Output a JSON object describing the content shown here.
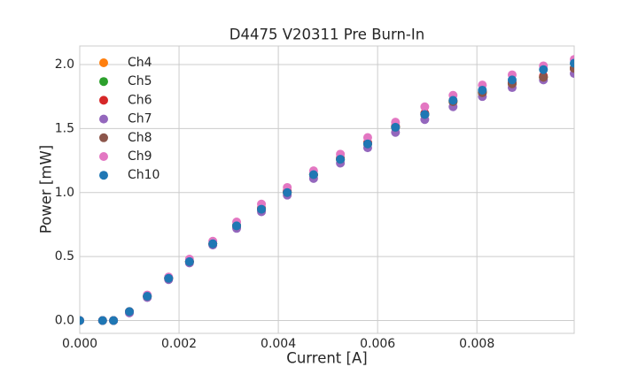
{
  "chart_data": {
    "type": "scatter",
    "title": "D4475 V20311 Pre Burn-In",
    "x_label": "Current [A]",
    "y_label": "Power [mW]",
    "x": [
      0,
      0.00046,
      0.00068,
      0.001,
      0.00136,
      0.00179,
      0.00221,
      0.00268,
      0.00316,
      0.00366,
      0.00418,
      0.00471,
      0.00525,
      0.0058,
      0.00636,
      0.00695,
      0.00752,
      0.00811,
      0.00871,
      0.00934,
      0.00996
    ],
    "series": [
      {
        "name": "Ch4",
        "color": "#ff7f0e",
        "values": [
          0,
          0,
          0,
          0.07,
          0.19,
          0.33,
          0.46,
          0.6,
          0.74,
          0.87,
          1.0,
          1.14,
          1.26,
          1.38,
          1.51,
          1.61,
          1.71,
          1.78,
          1.85,
          1.9,
          1.97
        ]
      },
      {
        "name": "Ch5",
        "color": "#2ca02c",
        "values": [
          0,
          0,
          0,
          0.07,
          0.19,
          0.33,
          0.46,
          0.6,
          0.74,
          0.87,
          1.0,
          1.14,
          1.26,
          1.38,
          1.51,
          1.61,
          1.71,
          1.78,
          1.85,
          1.9,
          1.97
        ]
      },
      {
        "name": "Ch6",
        "color": "#d62728",
        "values": [
          0,
          0,
          0,
          0.07,
          0.19,
          0.33,
          0.46,
          0.6,
          0.74,
          0.88,
          1.01,
          1.14,
          1.27,
          1.39,
          1.52,
          1.62,
          1.72,
          1.79,
          1.86,
          1.91,
          1.97
        ]
      },
      {
        "name": "Ch7",
        "color": "#9467bd",
        "values": [
          0,
          0,
          0,
          0.06,
          0.18,
          0.32,
          0.45,
          0.59,
          0.72,
          0.85,
          0.98,
          1.11,
          1.23,
          1.35,
          1.47,
          1.57,
          1.67,
          1.75,
          1.82,
          1.88,
          1.93
        ]
      },
      {
        "name": "Ch8",
        "color": "#8c564b",
        "values": [
          0,
          0,
          0,
          0.07,
          0.19,
          0.33,
          0.46,
          0.6,
          0.74,
          0.87,
          1.0,
          1.14,
          1.26,
          1.38,
          1.51,
          1.61,
          1.71,
          1.78,
          1.85,
          1.9,
          1.97
        ]
      },
      {
        "name": "Ch9",
        "color": "#e377c2",
        "values": [
          0,
          0,
          0,
          0.07,
          0.2,
          0.34,
          0.48,
          0.62,
          0.77,
          0.91,
          1.04,
          1.17,
          1.3,
          1.43,
          1.55,
          1.67,
          1.76,
          1.84,
          1.92,
          1.99,
          2.04
        ]
      },
      {
        "name": "Ch10",
        "color": "#1f77b4",
        "values": [
          0,
          0,
          0,
          0.07,
          0.19,
          0.33,
          0.46,
          0.6,
          0.74,
          0.87,
          1.0,
          1.14,
          1.26,
          1.38,
          1.51,
          1.61,
          1.72,
          1.8,
          1.88,
          1.96,
          2.01
        ]
      }
    ],
    "xlim": [
      0,
      0.00996
    ],
    "ylim": [
      -0.1,
      2.145
    ],
    "xticks": [
      {
        "value": 0,
        "label": "0.000"
      },
      {
        "value": 0.002,
        "label": "0.002"
      },
      {
        "value": 0.004,
        "label": "0.004"
      },
      {
        "value": 0.006,
        "label": "0.006"
      },
      {
        "value": 0.008,
        "label": "0.008"
      }
    ],
    "yticks": [
      {
        "value": 0,
        "label": "0.0"
      },
      0.5,
      {
        "value": 1,
        "label": "1.0"
      },
      1.5,
      {
        "value": 2,
        "label": "2.0"
      }
    ],
    "grid": true,
    "legend": "upper-left"
  }
}
